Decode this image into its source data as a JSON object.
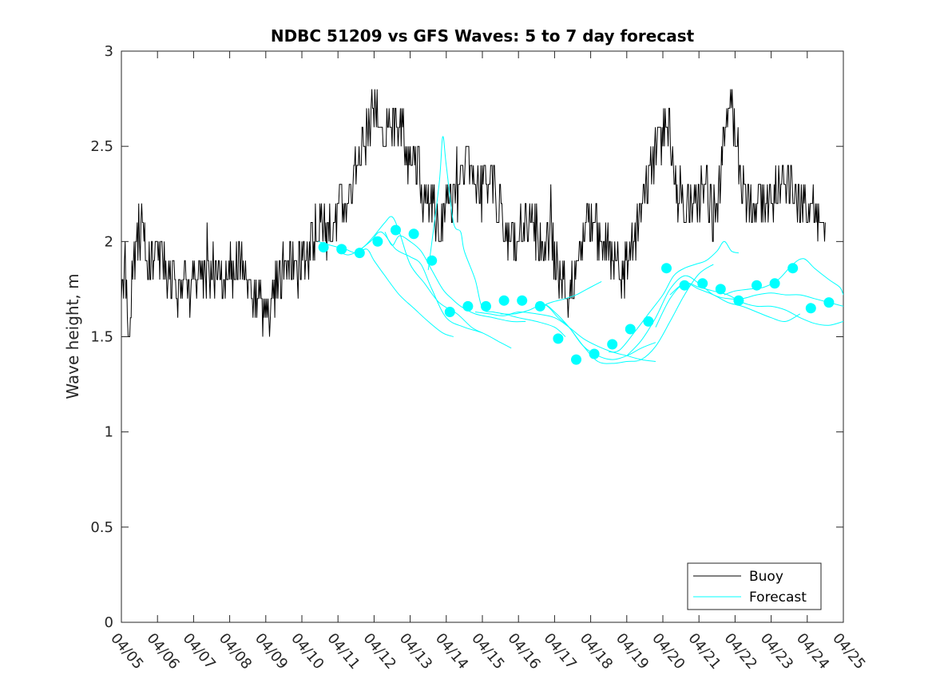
{
  "chart_data": {
    "type": "line",
    "title": "NDBC 51209 vs GFS Waves: 5 to 7 day forecast",
    "xlabel": "",
    "ylabel": "Wave height, m",
    "x_ticks": [
      "04/05",
      "04/06",
      "04/07",
      "04/08",
      "04/09",
      "04/10",
      "04/11",
      "04/12",
      "04/13",
      "04/14",
      "04/15",
      "04/16",
      "04/17",
      "04/18",
      "04/19",
      "04/20",
      "04/21",
      "04/22",
      "04/23",
      "04/24",
      "04/25"
    ],
    "xlim_days": [
      0,
      20
    ],
    "y_ticks": [
      "0",
      "0.5",
      "1",
      "1.5",
      "2",
      "2.5",
      "3"
    ],
    "ylim": [
      0,
      3
    ],
    "grid": false,
    "legend": {
      "position": "bottom-right",
      "entries": [
        "Buoy",
        "Forecast"
      ]
    },
    "colors": {
      "buoy": "#000000",
      "forecast": "#00ffff"
    },
    "buoy_anchors": [
      [
        0.0,
        1.75
      ],
      [
        0.1,
        1.85
      ],
      [
        0.2,
        1.55
      ],
      [
        0.3,
        1.8
      ],
      [
        0.45,
        2.0
      ],
      [
        0.55,
        2.1
      ],
      [
        0.7,
        1.9
      ],
      [
        0.85,
        1.85
      ],
      [
        1.0,
        1.95
      ],
      [
        1.1,
        1.9
      ],
      [
        1.25,
        1.8
      ],
      [
        1.4,
        1.8
      ],
      [
        1.55,
        1.75
      ],
      [
        1.7,
        1.8
      ],
      [
        1.85,
        1.75
      ],
      [
        2.0,
        1.8
      ],
      [
        2.2,
        1.8
      ],
      [
        2.4,
        1.8
      ],
      [
        2.6,
        1.8
      ],
      [
        2.8,
        1.75
      ],
      [
        3.0,
        1.8
      ],
      [
        3.15,
        1.85
      ],
      [
        3.25,
        1.95
      ],
      [
        3.35,
        1.85
      ],
      [
        3.5,
        1.75
      ],
      [
        3.7,
        1.7
      ],
      [
        3.85,
        1.7
      ],
      [
        4.0,
        1.65
      ],
      [
        4.1,
        1.65
      ],
      [
        4.25,
        1.75
      ],
      [
        4.45,
        1.85
      ],
      [
        4.65,
        1.85
      ],
      [
        4.85,
        1.85
      ],
      [
        5.0,
        1.9
      ],
      [
        5.2,
        1.95
      ],
      [
        5.35,
        2.05
      ],
      [
        5.5,
        2.1
      ],
      [
        5.7,
        2.15
      ],
      [
        5.85,
        2.1
      ],
      [
        6.0,
        2.15
      ],
      [
        6.15,
        2.2
      ],
      [
        6.3,
        2.2
      ],
      [
        6.45,
        2.35
      ],
      [
        6.6,
        2.4
      ],
      [
        6.75,
        2.55
      ],
      [
        6.9,
        2.65
      ],
      [
        7.05,
        2.7
      ],
      [
        7.2,
        2.65
      ],
      [
        7.35,
        2.55
      ],
      [
        7.5,
        2.6
      ],
      [
        7.65,
        2.6
      ],
      [
        7.8,
        2.55
      ],
      [
        7.95,
        2.45
      ],
      [
        8.1,
        2.5
      ],
      [
        8.25,
        2.35
      ],
      [
        8.4,
        2.25
      ],
      [
        8.55,
        2.2
      ],
      [
        8.7,
        2.15
      ],
      [
        8.85,
        2.1
      ],
      [
        9.0,
        2.15
      ],
      [
        9.15,
        2.2
      ],
      [
        9.3,
        2.2
      ],
      [
        9.45,
        2.35
      ],
      [
        9.6,
        2.45
      ],
      [
        9.75,
        2.3
      ],
      [
        9.9,
        2.3
      ],
      [
        10.1,
        2.3
      ],
      [
        10.3,
        2.3
      ],
      [
        10.5,
        2.15
      ],
      [
        10.7,
        2.05
      ],
      [
        10.9,
        2.0
      ],
      [
        11.1,
        2.05
      ],
      [
        11.3,
        2.1
      ],
      [
        11.5,
        2.05
      ],
      [
        11.7,
        1.95
      ],
      [
        11.9,
        2.0
      ],
      [
        12.1,
        1.85
      ],
      [
        12.3,
        1.75
      ],
      [
        12.5,
        1.8
      ],
      [
        12.6,
        1.9
      ],
      [
        12.8,
        2.05
      ],
      [
        13.0,
        2.1
      ],
      [
        13.2,
        2.05
      ],
      [
        13.4,
        2.0
      ],
      [
        13.6,
        1.9
      ],
      [
        13.8,
        1.85
      ],
      [
        14.0,
        1.85
      ],
      [
        14.2,
        2.0
      ],
      [
        14.4,
        2.15
      ],
      [
        14.55,
        2.3
      ],
      [
        14.7,
        2.4
      ],
      [
        14.85,
        2.5
      ],
      [
        15.0,
        2.6
      ],
      [
        15.15,
        2.65
      ],
      [
        15.3,
        2.4
      ],
      [
        15.45,
        2.25
      ],
      [
        15.6,
        2.2
      ],
      [
        15.75,
        2.2
      ],
      [
        15.9,
        2.15
      ],
      [
        16.05,
        2.25
      ],
      [
        16.2,
        2.3
      ],
      [
        16.35,
        2.15
      ],
      [
        16.5,
        2.2
      ],
      [
        16.65,
        2.45
      ],
      [
        16.8,
        2.65
      ],
      [
        16.9,
        2.75
      ],
      [
        17.05,
        2.5
      ],
      [
        17.2,
        2.3
      ],
      [
        17.35,
        2.2
      ],
      [
        17.5,
        2.25
      ],
      [
        17.65,
        2.2
      ],
      [
        17.8,
        2.2
      ],
      [
        17.95,
        2.25
      ],
      [
        18.1,
        2.2
      ],
      [
        18.25,
        2.35
      ],
      [
        18.4,
        2.3
      ],
      [
        18.55,
        2.3
      ],
      [
        18.7,
        2.25
      ],
      [
        18.85,
        2.15
      ],
      [
        19.0,
        2.2
      ],
      [
        19.15,
        2.25
      ],
      [
        19.3,
        2.15
      ],
      [
        19.4,
        2.1
      ],
      [
        19.5,
        2.05
      ]
    ],
    "forecast_runs": [
      [
        [
          5.45,
          2.0
        ],
        [
          5.8,
          1.98
        ],
        [
          6.2,
          1.96
        ],
        [
          6.5,
          1.94
        ],
        [
          6.8,
          1.96
        ],
        [
          7.0,
          1.9
        ],
        [
          7.3,
          1.82
        ],
        [
          7.7,
          1.72
        ],
        [
          8.1,
          1.65
        ],
        [
          8.5,
          1.58
        ],
        [
          8.9,
          1.52
        ],
        [
          9.2,
          1.5
        ]
      ],
      [
        [
          6.0,
          1.95
        ],
        [
          6.3,
          1.93
        ],
        [
          6.7,
          1.97
        ],
        [
          7.0,
          2.03
        ],
        [
          7.3,
          2.1
        ],
        [
          7.5,
          2.13
        ],
        [
          7.7,
          2.05
        ],
        [
          8.0,
          1.88
        ],
        [
          8.4,
          1.78
        ],
        [
          8.8,
          1.68
        ],
        [
          9.3,
          1.62
        ],
        [
          9.7,
          1.55
        ],
        [
          10.0,
          1.52
        ]
      ],
      [
        [
          6.5,
          1.94
        ],
        [
          6.9,
          2.0
        ],
        [
          7.2,
          2.05
        ],
        [
          7.6,
          1.96
        ],
        [
          8.0,
          1.92
        ],
        [
          8.3,
          1.88
        ],
        [
          8.6,
          1.75
        ],
        [
          9.0,
          1.6
        ],
        [
          9.5,
          1.55
        ],
        [
          10.0,
          1.52
        ],
        [
          10.5,
          1.47
        ],
        [
          10.8,
          1.44
        ]
      ],
      [
        [
          7.3,
          2.05
        ],
        [
          7.5,
          1.98
        ],
        [
          7.7,
          2.03
        ],
        [
          8.0,
          2.0
        ],
        [
          8.3,
          1.95
        ],
        [
          8.6,
          1.85
        ],
        [
          8.9,
          1.75
        ],
        [
          9.15,
          1.7
        ],
        [
          9.4,
          1.66
        ],
        [
          9.8,
          1.62
        ],
        [
          10.3,
          1.6
        ],
        [
          10.8,
          1.58
        ],
        [
          11.2,
          1.58
        ]
      ],
      [
        [
          8.5,
          1.85
        ],
        [
          8.8,
          2.3
        ],
        [
          8.9,
          2.55
        ],
        [
          9.0,
          2.4
        ],
        [
          9.2,
          2.1
        ],
        [
          9.4,
          2.05
        ],
        [
          9.5,
          1.95
        ],
        [
          9.8,
          1.8
        ],
        [
          10.0,
          1.65
        ],
        [
          10.3,
          1.63
        ],
        [
          10.6,
          1.62
        ],
        [
          11.0,
          1.6
        ],
        [
          11.5,
          1.58
        ],
        [
          12.0,
          1.55
        ],
        [
          12.3,
          1.5
        ]
      ],
      [
        [
          9.8,
          1.63
        ],
        [
          10.2,
          1.62
        ],
        [
          10.6,
          1.61
        ],
        [
          11.0,
          1.63
        ],
        [
          11.5,
          1.62
        ],
        [
          12.0,
          1.6
        ],
        [
          12.4,
          1.55
        ],
        [
          12.8,
          1.49
        ],
        [
          13.2,
          1.45
        ],
        [
          13.6,
          1.42
        ],
        [
          14.0,
          1.4
        ],
        [
          14.4,
          1.38
        ],
        [
          14.8,
          1.37
        ]
      ],
      [
        [
          10.5,
          1.62
        ],
        [
          10.9,
          1.62
        ],
        [
          11.3,
          1.64
        ],
        [
          11.7,
          1.67
        ],
        [
          12.0,
          1.63
        ],
        [
          12.4,
          1.55
        ],
        [
          12.8,
          1.45
        ],
        [
          13.2,
          1.4
        ],
        [
          13.6,
          1.38
        ],
        [
          14.0,
          1.4
        ],
        [
          14.4,
          1.44
        ],
        [
          14.8,
          1.47
        ]
      ],
      [
        [
          11.5,
          1.68
        ],
        [
          11.8,
          1.66
        ],
        [
          12.1,
          1.6
        ],
        [
          12.4,
          1.55
        ],
        [
          12.8,
          1.45
        ],
        [
          13.2,
          1.37
        ],
        [
          13.6,
          1.36
        ],
        [
          14.0,
          1.37
        ],
        [
          14.4,
          1.38
        ],
        [
          14.8,
          1.45
        ],
        [
          15.2,
          1.58
        ],
        [
          15.6,
          1.72
        ],
        [
          16.0,
          1.83
        ],
        [
          16.4,
          1.88
        ]
      ],
      [
        [
          11.5,
          1.65
        ],
        [
          11.9,
          1.68
        ],
        [
          12.3,
          1.7
        ],
        [
          12.6,
          1.72
        ],
        [
          12.8,
          1.74
        ],
        [
          13.0,
          1.76
        ],
        [
          13.3,
          1.79
        ]
      ],
      [
        [
          13.5,
          1.42
        ],
        [
          13.8,
          1.43
        ],
        [
          14.2,
          1.52
        ],
        [
          14.6,
          1.62
        ],
        [
          15.0,
          1.72
        ],
        [
          15.3,
          1.82
        ],
        [
          15.6,
          1.86
        ],
        [
          15.9,
          1.88
        ],
        [
          16.2,
          1.9
        ],
        [
          16.5,
          1.95
        ],
        [
          16.7,
          2.0
        ],
        [
          16.9,
          1.95
        ],
        [
          17.1,
          1.94
        ]
      ],
      [
        [
          14.0,
          1.4
        ],
        [
          14.4,
          1.48
        ],
        [
          14.8,
          1.6
        ],
        [
          15.2,
          1.75
        ],
        [
          15.6,
          1.82
        ],
        [
          16.0,
          1.78
        ],
        [
          16.4,
          1.72
        ],
        [
          16.8,
          1.7
        ],
        [
          17.2,
          1.7
        ],
        [
          17.6,
          1.72
        ],
        [
          18.0,
          1.73
        ],
        [
          18.4,
          1.72
        ],
        [
          18.8,
          1.72
        ],
        [
          19.2,
          1.7
        ],
        [
          19.6,
          1.68
        ],
        [
          20.0,
          1.66
        ]
      ],
      [
        [
          14.8,
          1.55
        ],
        [
          15.2,
          1.7
        ],
        [
          15.6,
          1.78
        ],
        [
          16.0,
          1.76
        ],
        [
          16.4,
          1.74
        ],
        [
          16.8,
          1.72
        ],
        [
          17.2,
          1.68
        ],
        [
          17.6,
          1.66
        ],
        [
          18.0,
          1.66
        ],
        [
          18.4,
          1.64
        ],
        [
          18.8,
          1.6
        ],
        [
          19.2,
          1.57
        ],
        [
          19.6,
          1.56
        ],
        [
          20.0,
          1.58
        ]
      ],
      [
        [
          15.2,
          1.72
        ],
        [
          15.6,
          1.78
        ],
        [
          16.0,
          1.75
        ],
        [
          16.4,
          1.72
        ],
        [
          16.8,
          1.68
        ],
        [
          17.2,
          1.66
        ],
        [
          17.6,
          1.63
        ],
        [
          18.0,
          1.6
        ],
        [
          18.4,
          1.58
        ],
        [
          18.8,
          1.62
        ]
      ],
      [
        [
          16.7,
          1.72
        ],
        [
          17.0,
          1.74
        ],
        [
          17.4,
          1.75
        ],
        [
          17.8,
          1.76
        ],
        [
          18.2,
          1.8
        ],
        [
          18.6,
          1.88
        ],
        [
          18.9,
          1.91
        ],
        [
          19.2,
          1.86
        ],
        [
          19.6,
          1.8
        ],
        [
          19.9,
          1.76
        ],
        [
          20.0,
          1.72
        ]
      ]
    ],
    "forecast_markers": [
      [
        5.6,
        1.97
      ],
      [
        6.1,
        1.96
      ],
      [
        6.6,
        1.94
      ],
      [
        7.1,
        2.0
      ],
      [
        7.6,
        2.06
      ],
      [
        8.1,
        2.04
      ],
      [
        8.6,
        1.9
      ],
      [
        9.1,
        1.63
      ],
      [
        9.6,
        1.66
      ],
      [
        10.1,
        1.66
      ],
      [
        10.6,
        1.69
      ],
      [
        11.1,
        1.69
      ],
      [
        11.6,
        1.66
      ],
      [
        12.1,
        1.49
      ],
      [
        12.6,
        1.38
      ],
      [
        13.1,
        1.41
      ],
      [
        13.6,
        1.46
      ],
      [
        14.1,
        1.54
      ],
      [
        14.6,
        1.58
      ],
      [
        15.1,
        1.86
      ],
      [
        15.6,
        1.77
      ],
      [
        16.1,
        1.78
      ],
      [
        16.6,
        1.75
      ],
      [
        17.1,
        1.69
      ],
      [
        17.6,
        1.77
      ],
      [
        18.1,
        1.78
      ],
      [
        18.6,
        1.86
      ],
      [
        19.1,
        1.65
      ],
      [
        19.6,
        1.68
      ]
    ]
  }
}
